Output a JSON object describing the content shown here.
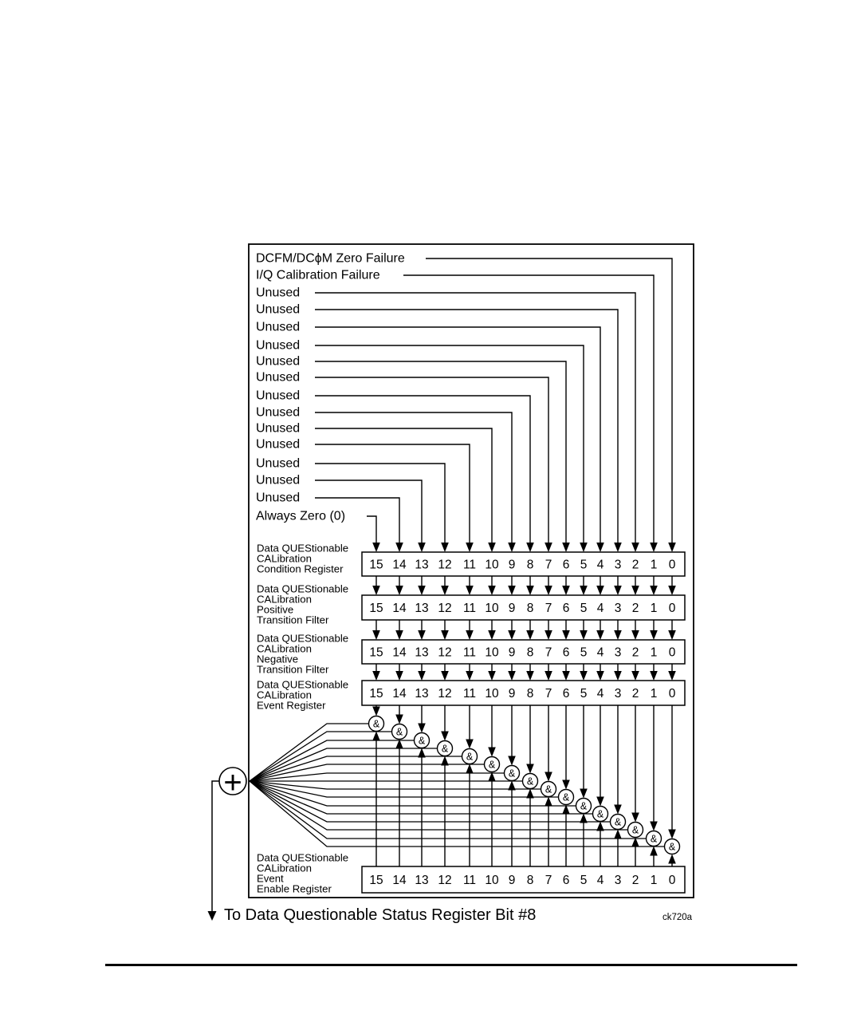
{
  "colors": {
    "ink": "#000000",
    "paper": "#ffffff"
  },
  "diagram": {
    "inputs": [
      {
        "bit": 0,
        "label": "DCFM/DCϕM Zero Failure"
      },
      {
        "bit": 1,
        "label": "I/Q Calibration Failure"
      },
      {
        "bit": 2,
        "label": "Unused"
      },
      {
        "bit": 3,
        "label": "Unused"
      },
      {
        "bit": 4,
        "label": "Unused"
      },
      {
        "bit": 5,
        "label": "Unused"
      },
      {
        "bit": 6,
        "label": "Unused"
      },
      {
        "bit": 7,
        "label": "Unused"
      },
      {
        "bit": 8,
        "label": "Unused"
      },
      {
        "bit": 9,
        "label": "Unused"
      },
      {
        "bit": 10,
        "label": "Unused"
      },
      {
        "bit": 11,
        "label": "Unused"
      },
      {
        "bit": 12,
        "label": "Unused"
      },
      {
        "bit": 13,
        "label": "Unused"
      },
      {
        "bit": 14,
        "label": "Unused"
      },
      {
        "bit": 15,
        "label": "Always Zero (0)"
      }
    ],
    "bit_numbers": [
      "15",
      "14",
      "13",
      "12",
      "11",
      "10",
      "9",
      "8",
      "7",
      "6",
      "5",
      "4",
      "3",
      "2",
      "1",
      "0"
    ],
    "registers": [
      {
        "name_lines": [
          "Data QUEStionable",
          "CALibration",
          "Condition Register"
        ]
      },
      {
        "name_lines": [
          "Data QUEStionable",
          "CALibration",
          "Positive",
          "Transition Filter"
        ]
      },
      {
        "name_lines": [
          "Data QUEStionable",
          "CALibration",
          "Negative",
          "Transition Filter"
        ]
      },
      {
        "name_lines": [
          "Data QUEStionable",
          "CALibration",
          "Event Register"
        ]
      },
      {
        "name_lines": [
          "Data QUEStionable",
          "CALibration",
          "Event",
          "Enable Register"
        ]
      }
    ],
    "and_gate_symbol": "&",
    "summation_symbol": "+",
    "footer_note": "To Data Questionable Status Register Bit #8",
    "figure_id": "ck720a"
  }
}
